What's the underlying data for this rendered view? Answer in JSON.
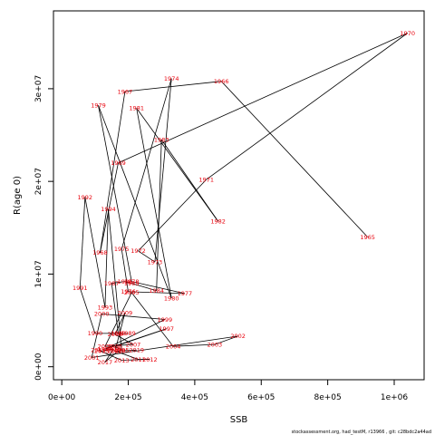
{
  "chart_data": {
    "type": "scatter",
    "xlabel": "SSB",
    "ylabel": "R(age 0)",
    "xlim": [
      -25000,
      1090000
    ],
    "ylim": [
      -1400000,
      38400000
    ],
    "x_ticks": [
      {
        "value": 0,
        "label": "0e+00"
      },
      {
        "value": 200000,
        "label": "2e+05"
      },
      {
        "value": 400000,
        "label": "4e+05"
      },
      {
        "value": 600000,
        "label": "6e+05"
      },
      {
        "value": 800000,
        "label": "8e+05"
      },
      {
        "value": 1000000,
        "label": "1e+06"
      }
    ],
    "y_ticks": [
      {
        "value": 0,
        "label": "0e+00"
      },
      {
        "value": 10000000,
        "label": "1e+07"
      },
      {
        "value": 20000000,
        "label": "2e+07"
      },
      {
        "value": 30000000,
        "label": "3e+07"
      }
    ],
    "grid": false,
    "connected_path": true,
    "line_color": "#000000",
    "label_color": "#e8000b",
    "points": [
      {
        "year": "1965",
        "x": 920000,
        "y": 14000000
      },
      {
        "year": "1966",
        "x": 480000,
        "y": 30800000
      },
      {
        "year": "1967",
        "x": 190000,
        "y": 29700000
      },
      {
        "year": "1968",
        "x": 115000,
        "y": 12300000
      },
      {
        "year": "1969",
        "x": 170000,
        "y": 22000000
      },
      {
        "year": "1970",
        "x": 1040000,
        "y": 36000000
      },
      {
        "year": "1971",
        "x": 435000,
        "y": 20200000
      },
      {
        "year": "1972",
        "x": 230000,
        "y": 12500000
      },
      {
        "year": "1973",
        "x": 280000,
        "y": 11300000
      },
      {
        "year": "1974",
        "x": 330000,
        "y": 31100000
      },
      {
        "year": "1975",
        "x": 180000,
        "y": 12700000
      },
      {
        "year": "1976",
        "x": 200000,
        "y": 8100000
      },
      {
        "year": "1977",
        "x": 370000,
        "y": 7900000
      },
      {
        "year": "1978",
        "x": 210000,
        "y": 9200000
      },
      {
        "year": "1979",
        "x": 110000,
        "y": 28200000
      },
      {
        "year": "1980",
        "x": 330000,
        "y": 7400000
      },
      {
        "year": "1981",
        "x": 225000,
        "y": 27900000
      },
      {
        "year": "1982",
        "x": 470000,
        "y": 15700000
      },
      {
        "year": "1983",
        "x": 300000,
        "y": 24500000
      },
      {
        "year": "1984",
        "x": 285000,
        "y": 8200000
      },
      {
        "year": "1985",
        "x": 210000,
        "y": 9000000
      },
      {
        "year": "1986",
        "x": 190000,
        "y": 9200000
      },
      {
        "year": "1987",
        "x": 150000,
        "y": 9000000
      },
      {
        "year": "1988",
        "x": 170000,
        "y": 3600000
      },
      {
        "year": "1989",
        "x": 200000,
        "y": 3600000
      },
      {
        "year": "1990",
        "x": 100000,
        "y": 3600000
      },
      {
        "year": "1991",
        "x": 55000,
        "y": 8500000
      },
      {
        "year": "1992",
        "x": 70000,
        "y": 18300000
      },
      {
        "year": "1993",
        "x": 130000,
        "y": 6400000
      },
      {
        "year": "1994",
        "x": 140000,
        "y": 17000000
      },
      {
        "year": "1995",
        "x": 180000,
        "y": 1800000
      },
      {
        "year": "1996",
        "x": 160000,
        "y": 2200000
      },
      {
        "year": "1997",
        "x": 315000,
        "y": 4100000
      },
      {
        "year": "1998",
        "x": 130000,
        "y": 1900000
      },
      {
        "year": "1999",
        "x": 310000,
        "y": 5100000
      },
      {
        "year": "2000",
        "x": 120000,
        "y": 5700000
      },
      {
        "year": "2001",
        "x": 90000,
        "y": 1000000
      },
      {
        "year": "2002",
        "x": 530000,
        "y": 3300000
      },
      {
        "year": "2003",
        "x": 460000,
        "y": 2400000
      },
      {
        "year": "2004",
        "x": 335000,
        "y": 2200000
      },
      {
        "year": "2005",
        "x": 210000,
        "y": 8000000
      },
      {
        "year": "2006",
        "x": 130000,
        "y": 2200000
      },
      {
        "year": "2007",
        "x": 215000,
        "y": 2400000
      },
      {
        "year": "2008",
        "x": 160000,
        "y": 3500000
      },
      {
        "year": "2009",
        "x": 190000,
        "y": 5800000
      },
      {
        "year": "2010",
        "x": 160000,
        "y": 1700000
      },
      {
        "year": "2011",
        "x": 230000,
        "y": 800000
      },
      {
        "year": "2012",
        "x": 265000,
        "y": 800000
      },
      {
        "year": "2013",
        "x": 180000,
        "y": 700000
      },
      {
        "year": "2014",
        "x": 110000,
        "y": 1800000
      },
      {
        "year": "2015",
        "x": 120000,
        "y": 1700000
      },
      {
        "year": "2016",
        "x": 155000,
        "y": 1900000
      },
      {
        "year": "2017",
        "x": 130000,
        "y": 500000
      },
      {
        "year": "2018",
        "x": 170000,
        "y": 1700000
      },
      {
        "year": "2019",
        "x": 225000,
        "y": 1800000
      }
    ]
  },
  "footer_text": "stockassessment.org, had_testM, r13966 , git: c28bdc2a44ad"
}
